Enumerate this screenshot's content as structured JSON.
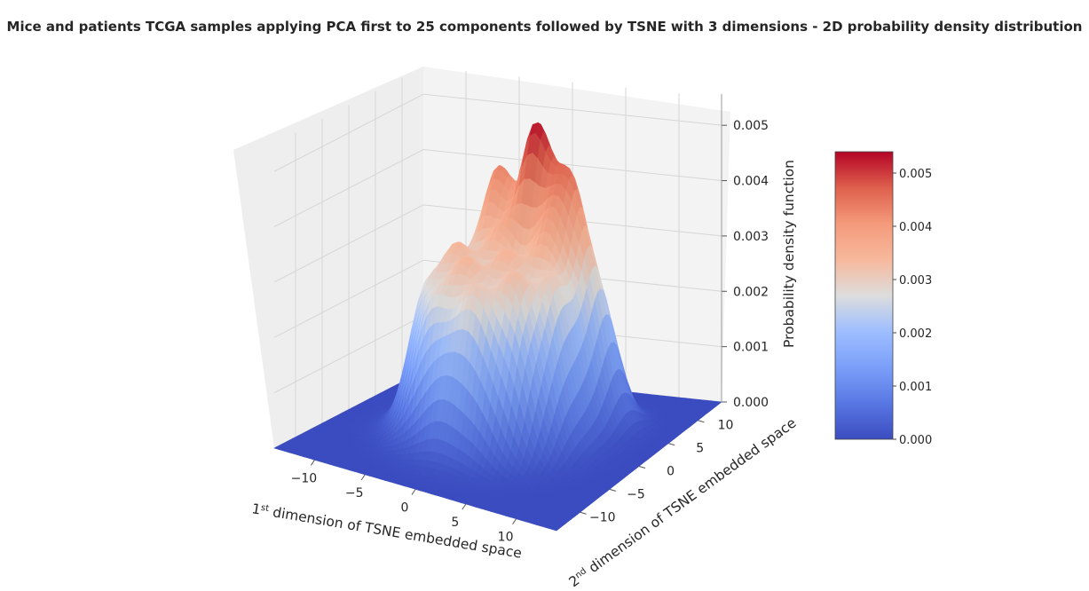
{
  "chart_data": {
    "type": "surface3d",
    "title": "Mice and patients TCGA samples applying PCA first to 25 components followed by TSNE with 3 dimensions - 2D probability density distribution",
    "xlabel": "1st dimension of TSNE embedded space",
    "ylabel": "2nd dimension of TSNE embedded space",
    "zlabel": "Probability density function",
    "x_ticks": [
      -10,
      -5,
      0,
      5,
      10
    ],
    "y_ticks": [
      -10,
      -5,
      0,
      5,
      10
    ],
    "z_ticks": [
      0.0,
      0.001,
      0.002,
      0.003,
      0.004,
      0.005
    ],
    "x_tick_labels": [
      "−10",
      "−5",
      "0",
      "5",
      "10"
    ],
    "y_tick_labels": [
      "−10",
      "−5",
      "0",
      "5",
      "10"
    ],
    "z_tick_labels": [
      "0.000",
      "0.001",
      "0.002",
      "0.003",
      "0.004",
      "0.005"
    ],
    "xlim": [
      -14,
      14
    ],
    "ylim": [
      -14,
      14
    ],
    "zlim": [
      0,
      0.0055
    ],
    "colormap": "coolwarm",
    "colorbar": {
      "range": [
        0,
        0.0054
      ],
      "ticks": [
        0.0,
        0.001,
        0.002,
        0.003,
        0.004,
        0.005
      ],
      "tick_labels": [
        "0.000",
        "0.001",
        "0.002",
        "0.003",
        "0.004",
        "0.005"
      ]
    },
    "peaks": [
      {
        "x": -5.5,
        "y": 9.5,
        "z": 0.0052
      },
      {
        "x": -3.5,
        "y": 8.5,
        "z": 0.0051
      },
      {
        "x": 0.5,
        "y": 6.5,
        "z": 0.0052
      },
      {
        "x": 4.0,
        "y": 6.0,
        "z": 0.005
      },
      {
        "x": 7.5,
        "y": 5.5,
        "z": 0.0049
      }
    ],
    "grid": true
  },
  "colors": {
    "pane": "#f2f2f2",
    "grid": "#d8d8d8",
    "low": "#3b4cc0",
    "mid": "#dddddd",
    "high": "#b40426"
  }
}
